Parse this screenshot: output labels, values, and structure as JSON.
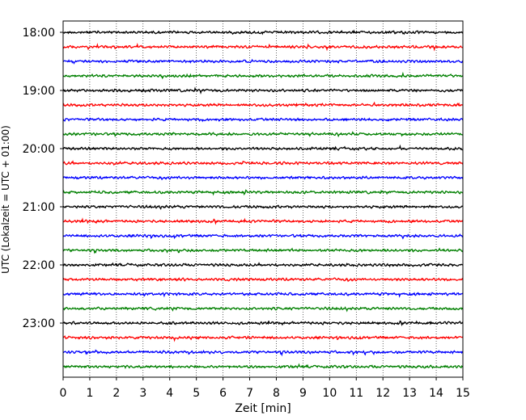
{
  "chart_data": {
    "type": "line",
    "title": "",
    "xlabel": "Zeit  [min]",
    "ylabel": "UTC (Lokalzeit = UTC + 01:00)",
    "xlim": [
      0,
      15
    ],
    "x_ticks": [
      "0",
      "1",
      "2",
      "3",
      "4",
      "5",
      "6",
      "7",
      "8",
      "9",
      "10",
      "11",
      "12",
      "13",
      "14",
      "15"
    ],
    "y_tick_labels": [
      "18:00",
      "19:00",
      "20:00",
      "21:00",
      "22:00",
      "23:00"
    ],
    "grid": "vertical-dotted",
    "legend": "none",
    "trace_interval_minutes": 15,
    "start_time": "18:00",
    "end_time": "23:45",
    "trace_colors": [
      "#000000",
      "#ff0000",
      "#0000ff",
      "#008000"
    ],
    "series": [
      {
        "start": "18:00",
        "color": "#000000"
      },
      {
        "start": "18:15",
        "color": "#ff0000"
      },
      {
        "start": "18:30",
        "color": "#0000ff"
      },
      {
        "start": "18:45",
        "color": "#008000"
      },
      {
        "start": "19:00",
        "color": "#000000"
      },
      {
        "start": "19:15",
        "color": "#ff0000"
      },
      {
        "start": "19:30",
        "color": "#0000ff"
      },
      {
        "start": "19:45",
        "color": "#008000"
      },
      {
        "start": "20:00",
        "color": "#000000"
      },
      {
        "start": "20:15",
        "color": "#ff0000"
      },
      {
        "start": "20:30",
        "color": "#0000ff"
      },
      {
        "start": "20:45",
        "color": "#008000"
      },
      {
        "start": "21:00",
        "color": "#000000"
      },
      {
        "start": "21:15",
        "color": "#ff0000"
      },
      {
        "start": "21:30",
        "color": "#0000ff"
      },
      {
        "start": "21:45",
        "color": "#008000"
      },
      {
        "start": "22:00",
        "color": "#000000"
      },
      {
        "start": "22:15",
        "color": "#ff0000"
      },
      {
        "start": "22:30",
        "color": "#0000ff"
      },
      {
        "start": "22:45",
        "color": "#008000"
      },
      {
        "start": "23:00",
        "color": "#000000"
      },
      {
        "start": "23:15",
        "color": "#ff0000"
      },
      {
        "start": "23:30",
        "color": "#0000ff"
      },
      {
        "start": "23:45",
        "color": "#008000"
      }
    ]
  }
}
